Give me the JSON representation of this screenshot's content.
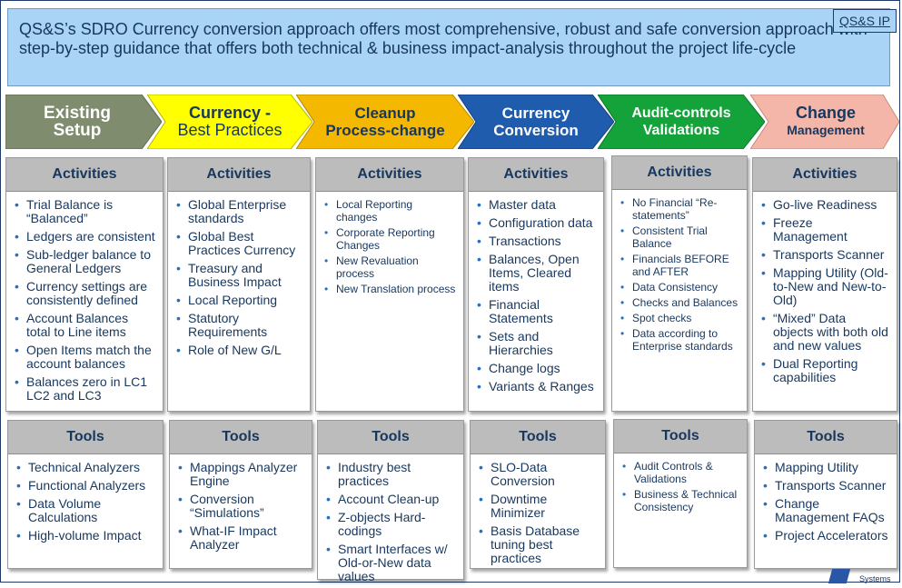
{
  "header": {
    "text": "QS&S’s SDRO Currency conversion approach offers most comprehensive, robust and safe conversion approach with step-by-step guidance that offers both technical & business impact-analysis throughout the project life-cycle",
    "ip_tag": "QS&S IP"
  },
  "colors": {
    "phase1": "#7f8c6e",
    "phase2": "#ffff00",
    "phase3": "#f5b800",
    "phase4": "#1f5cad",
    "phase5": "#14a33a",
    "phase6": "#f4b6a8",
    "text_dark": "#17375e"
  },
  "phases": [
    {
      "line1": "Existing",
      "line2": "Setup"
    },
    {
      "line1": "Currency -",
      "line2": "Best Practices"
    },
    {
      "line1": "Cleanup",
      "line2": "Process-change"
    },
    {
      "line1": "Currency",
      "line2": "Conversion"
    },
    {
      "line1": "Audit-controls",
      "line2": "Validations"
    },
    {
      "line1": "Change",
      "line2": "Management"
    }
  ],
  "activities": [
    {
      "heading": "Activities",
      "items": [
        "Trial Balance is “Balanced”",
        "Ledgers are consistent",
        "Sub-ledger balance to General Ledgers",
        "Currency settings are consistently defined",
        "Account Balances total to Line items",
        "Open Items match the account balances",
        "Balances zero in LC1 LC2 and LC3"
      ]
    },
    {
      "heading": "Activities",
      "items": [
        "Global Enterprise standards",
        "Global Best Practices Currency",
        "Treasury and Business Impact",
        "Local Reporting",
        "Statutory Requirements",
        "Role of New G/L"
      ]
    },
    {
      "heading": "Activities",
      "items": [
        "Local Reporting changes",
        "Corporate Reporting Changes",
        "New Revaluation process",
        "New Translation process"
      ]
    },
    {
      "heading": "Activities",
      "items": [
        "Master data",
        "Configuration data",
        "Transactions",
        "Balances, Open Items, Cleared items",
        "Financial Statements",
        "Sets and Hierarchies",
        "Change logs",
        "Variants & Ranges"
      ]
    },
    {
      "heading": "Activities",
      "items": [
        "No Financial “Re-statements”",
        "Consistent Trial Balance",
        "Financials BEFORE and AFTER",
        "Data Consistency",
        "Checks and Balances",
        "Spot checks",
        "Data according to Enterprise standards"
      ]
    },
    {
      "heading": "Activities",
      "items": [
        "Go-live Readiness",
        "Freeze Management",
        "Transports Scanner",
        "Mapping Utility (Old-to-New and New-to-Old)",
        "“Mixed” Data objects with both old and new values",
        "Dual Reporting capabilities"
      ]
    }
  ],
  "tools": [
    {
      "heading": "Tools",
      "items": [
        "Technical Analyzers",
        "Functional Analyzers",
        "Data Volume Calculations",
        "High-volume Impact"
      ]
    },
    {
      "heading": "Tools",
      "items": [
        "Mappings Analyzer Engine",
        "Conversion “Simulations”",
        "What-IF Impact Analyzer"
      ]
    },
    {
      "heading": "Tools",
      "items": [
        "Industry best practices",
        "Account Clean-up",
        "Z-objects Hard-codings",
        "Smart Interfaces w/ Old-or-New data values"
      ]
    },
    {
      "heading": "Tools",
      "items": [
        "SLO-Data Conversion",
        "Downtime Minimizer",
        "Basis Database tuning best practices"
      ]
    },
    {
      "heading": "Tools",
      "items": [
        "Audit Controls & Validations",
        "Business & Technical Consistency"
      ]
    },
    {
      "heading": "Tools",
      "items": [
        "Mapping Utility",
        "Transports Scanner",
        "Change Management FAQs",
        "Project Accelerators"
      ]
    }
  ],
  "logo": {
    "text": "Systems"
  }
}
